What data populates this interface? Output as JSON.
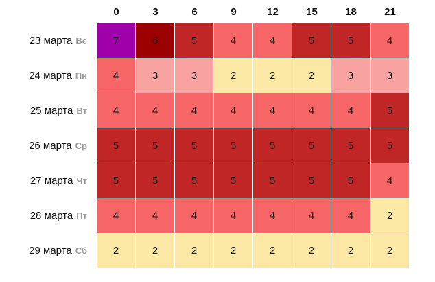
{
  "hours": [
    "0",
    "3",
    "6",
    "9",
    "12",
    "15",
    "18",
    "21"
  ],
  "level_colors": {
    "2": "#fbe8a5",
    "3": "#f9a2a2",
    "4": "#f66666",
    "5": "#c02626",
    "6": "#9c0000",
    "7": "#a000aa"
  },
  "rows": [
    {
      "date": "23 марта",
      "weekday": "Вс",
      "values": [
        7,
        6,
        5,
        4,
        4,
        5,
        5,
        4
      ]
    },
    {
      "date": "24 марта",
      "weekday": "Пн",
      "values": [
        4,
        3,
        3,
        2,
        2,
        2,
        3,
        3
      ]
    },
    {
      "date": "25 марта",
      "weekday": "Вт",
      "values": [
        4,
        4,
        4,
        4,
        4,
        4,
        4,
        5
      ]
    },
    {
      "date": "26 марта",
      "weekday": "Ср",
      "values": [
        5,
        5,
        5,
        5,
        5,
        5,
        5,
        5
      ]
    },
    {
      "date": "27 марта",
      "weekday": "Чт",
      "values": [
        5,
        5,
        5,
        5,
        5,
        5,
        5,
        4
      ]
    },
    {
      "date": "28 марта",
      "weekday": "Пт",
      "values": [
        4,
        4,
        4,
        4,
        4,
        4,
        4,
        2
      ]
    },
    {
      "date": "29 марта",
      "weekday": "Сб",
      "values": [
        2,
        2,
        2,
        2,
        2,
        2,
        2,
        2
      ]
    }
  ]
}
